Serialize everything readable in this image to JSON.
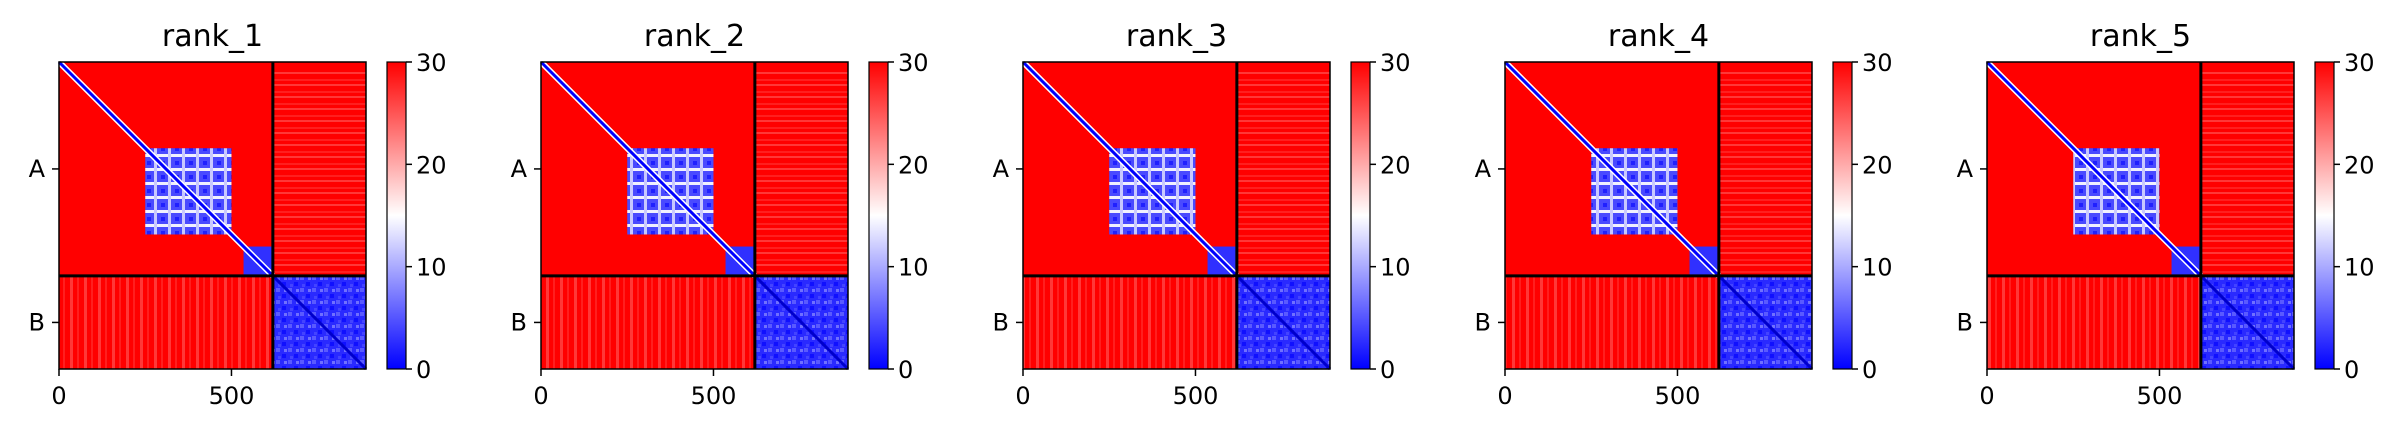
{
  "chart_data": {
    "type": "heatmap",
    "description_colormap": "bwr",
    "colors": {
      "low": "#0000ff",
      "mid": "#ffffff",
      "high": "#ff0000",
      "divider": "#000000"
    },
    "color_range": [
      0,
      30
    ],
    "colorbar_ticks": [
      "0",
      "10",
      "20",
      "30"
    ],
    "x_ticks": [
      {
        "value": 0,
        "label": "0"
      },
      {
        "value": 500,
        "label": "500"
      }
    ],
    "x_range": [
      0,
      890
    ],
    "chain_boundary": 620,
    "chains": [
      "A",
      "B"
    ],
    "panels": [
      {
        "title": "rank_1"
      },
      {
        "title": "rank_2"
      },
      {
        "title": "rank_3"
      },
      {
        "title": "rank_4"
      },
      {
        "title": "rank_5"
      }
    ]
  }
}
